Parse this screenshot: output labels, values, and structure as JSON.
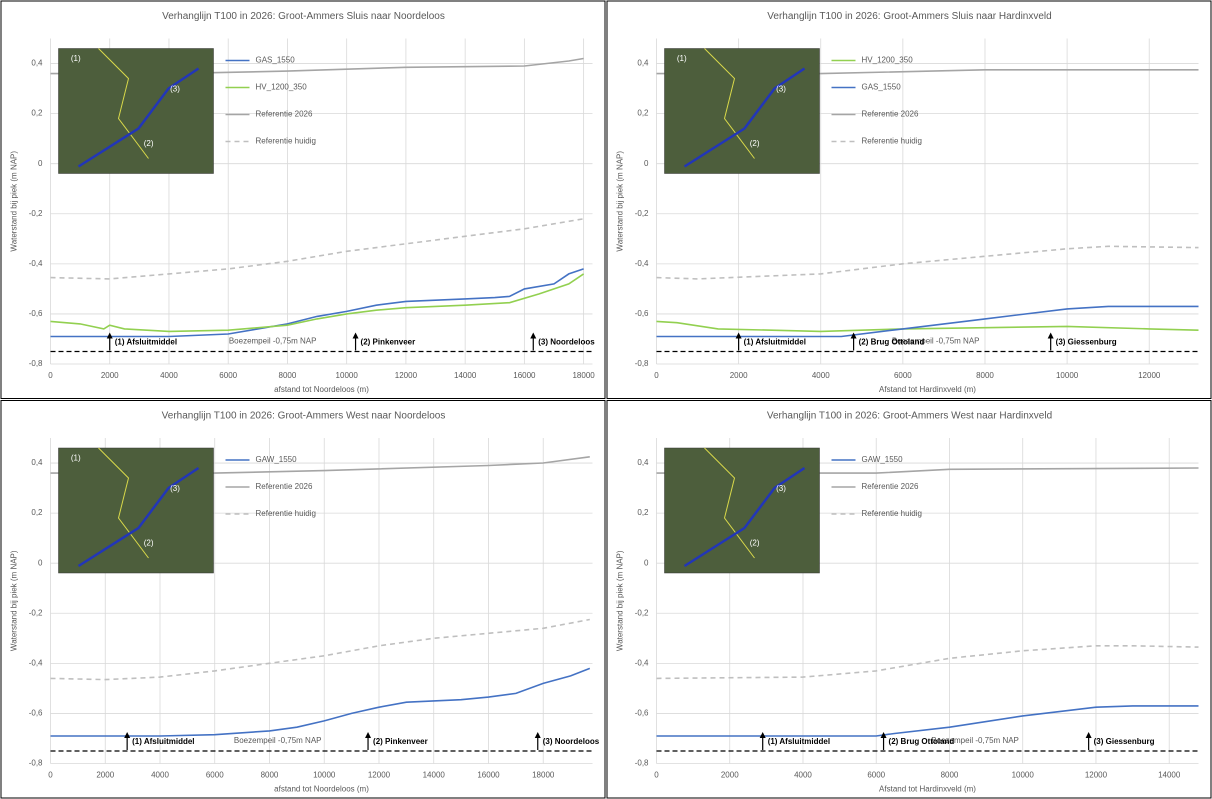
{
  "chart_data": [
    {
      "type": "line",
      "title": "Verhanglijn T100 in 2026: Groot-Ammers Sluis naar Noordeloos",
      "x_label": "afstand tot Noordeloos (m)",
      "y_label": "Waterstand bij piek (m NAP)",
      "xlim": [
        0,
        18300
      ],
      "xticks": [
        0,
        2000,
        4000,
        6000,
        8000,
        10000,
        12000,
        14000,
        16000,
        18000
      ],
      "ylim": [
        -0.8,
        0.5
      ],
      "yticks": [
        {
          "value": -0.8,
          "label": "-0,8"
        },
        {
          "value": -0.6,
          "label": "-0,6"
        },
        {
          "value": -0.4,
          "label": "-0,4"
        },
        {
          "value": -0.2,
          "label": "-0,2"
        },
        0,
        {
          "value": 0.2,
          "label": "0,2"
        },
        {
          "value": 0.4,
          "label": "0,4"
        }
      ],
      "grid": true,
      "legend": "upper-left",
      "series": [
        {
          "name": "GAS_1550",
          "color": "#4472c4",
          "dashed": false,
          "x": [
            0,
            2000,
            4000,
            6000,
            7000,
            8000,
            9000,
            10000,
            11000,
            12000,
            13000,
            14000,
            15000,
            15500,
            16000,
            17000,
            17500,
            18000
          ],
          "values": [
            -0.69,
            -0.69,
            -0.69,
            -0.68,
            -0.66,
            -0.64,
            -0.61,
            -0.59,
            -0.565,
            -0.55,
            -0.545,
            -0.54,
            -0.535,
            -0.53,
            -0.5,
            -0.48,
            -0.44,
            -0.42
          ]
        },
        {
          "name": "HV_1200_350",
          "color": "#92d050",
          "dashed": false,
          "x": [
            0,
            1000,
            1800,
            2000,
            2500,
            4000,
            6000,
            8000,
            9000,
            10000,
            11000,
            12000,
            14000,
            15500,
            16500,
            17500,
            18000
          ],
          "values": [
            -0.63,
            -0.64,
            -0.66,
            -0.645,
            -0.66,
            -0.67,
            -0.665,
            -0.645,
            -0.62,
            -0.6,
            -0.585,
            -0.575,
            -0.565,
            -0.555,
            -0.52,
            -0.48,
            -0.44
          ]
        },
        {
          "name": "Referentie 2026",
          "color": "#a5a5a5",
          "dashed": false,
          "x": [
            0,
            4000,
            8000,
            12000,
            16000,
            17500,
            18000
          ],
          "values": [
            0.36,
            0.36,
            0.37,
            0.385,
            0.39,
            0.41,
            0.42
          ]
        },
        {
          "name": "Referentie huidig",
          "color": "#bfbfbf",
          "dashed": true,
          "x": [
            0,
            2000,
            4000,
            6000,
            8000,
            10000,
            12000,
            14000,
            16000,
            18000
          ],
          "values": [
            -0.455,
            -0.46,
            -0.44,
            -0.42,
            -0.39,
            -0.35,
            -0.32,
            -0.29,
            -0.26,
            -0.22
          ]
        }
      ],
      "reference_line": -0.75,
      "reference_label": {
        "x": 7500,
        "text": "Boezempeil -0,75m NAP"
      },
      "annotations": [
        {
          "x": 2000,
          "text": "(1) Afsluitmiddel"
        },
        {
          "x": 10300,
          "text": "(2) Pinkenveer"
        },
        {
          "x": 16300,
          "text": "(3) Noordeloos"
        }
      ],
      "map_labels": [
        "(1)",
        "(2)",
        "(3)"
      ]
    },
    {
      "type": "line",
      "title": "Verhanglijn T100 in 2026: Groot-Ammers Sluis naar Hardinxveld",
      "x_label": "Afstand tot Hardinxveld (m)",
      "y_label": "Waterstand bij piek (m NAP)",
      "xlim": [
        0,
        13200
      ],
      "xticks": [
        0,
        2000,
        4000,
        6000,
        8000,
        10000,
        12000
      ],
      "ylim": [
        -0.8,
        0.5
      ],
      "yticks": [
        {
          "value": -0.8,
          "label": "-0,8"
        },
        {
          "value": -0.6,
          "label": "-0,6"
        },
        {
          "value": -0.4,
          "label": "-0,4"
        },
        {
          "value": -0.2,
          "label": "-0,2"
        },
        0,
        {
          "value": 0.2,
          "label": "0,2"
        },
        {
          "value": 0.4,
          "label": "0,4"
        }
      ],
      "grid": true,
      "legend": "upper-left",
      "series": [
        {
          "name": "HV_1200_350",
          "color": "#92d050",
          "dashed": false,
          "x": [
            0,
            500,
            1500,
            4000,
            6000,
            8000,
            10000,
            12000,
            13200
          ],
          "values": [
            -0.63,
            -0.635,
            -0.66,
            -0.67,
            -0.66,
            -0.655,
            -0.65,
            -0.66,
            -0.665
          ]
        },
        {
          "name": "GAS_1550",
          "color": "#4472c4",
          "dashed": false,
          "x": [
            0,
            4500,
            6000,
            8000,
            10000,
            11000,
            13200
          ],
          "values": [
            -0.69,
            -0.69,
            -0.66,
            -0.62,
            -0.58,
            -0.57,
            -0.57
          ]
        },
        {
          "name": "Referentie 2026",
          "color": "#a5a5a5",
          "dashed": false,
          "x": [
            0,
            4000,
            8000,
            13200
          ],
          "values": [
            0.36,
            0.36,
            0.375,
            0.375
          ]
        },
        {
          "name": "Referentie huidig",
          "color": "#bfbfbf",
          "dashed": true,
          "x": [
            0,
            1000,
            4000,
            6000,
            8000,
            10000,
            11000,
            13200
          ],
          "values": [
            -0.455,
            -0.46,
            -0.44,
            -0.4,
            -0.37,
            -0.34,
            -0.33,
            -0.335
          ]
        }
      ],
      "reference_line": -0.75,
      "reference_label": {
        "x": 6800,
        "text": "Boezempeil -0,75m NAP"
      },
      "annotations": [
        {
          "x": 2000,
          "text": "(1) Afsluitmiddel"
        },
        {
          "x": 4800,
          "text": "(2) Brug Ottoland"
        },
        {
          "x": 9600,
          "text": "(3) Giessenburg"
        }
      ],
      "map_labels": [
        "(1)",
        "(2)",
        "(3)"
      ]
    },
    {
      "type": "line",
      "title": "Verhanglijn T100 in 2026: Groot-Ammers West naar Noordeloos",
      "x_label": "afstand tot Noordeloos (m)",
      "y_label": "Waterstand bij piek (m NAP)",
      "xlim": [
        0,
        19800
      ],
      "xticks": [
        0,
        2000,
        4000,
        6000,
        8000,
        10000,
        12000,
        14000,
        16000,
        18000
      ],
      "ylim": [
        -0.8,
        0.5
      ],
      "yticks": [
        {
          "value": -0.8,
          "label": "-0,8"
        },
        {
          "value": -0.6,
          "label": "-0,6"
        },
        {
          "value": -0.4,
          "label": "-0,4"
        },
        {
          "value": -0.2,
          "label": "-0,2"
        },
        0,
        {
          "value": 0.2,
          "label": "0,2"
        },
        {
          "value": 0.4,
          "label": "0,4"
        }
      ],
      "grid": true,
      "legend": "upper-left",
      "series": [
        {
          "name": "GAW_1550",
          "color": "#4472c4",
          "dashed": false,
          "x": [
            0,
            4000,
            6000,
            8000,
            9000,
            10000,
            11000,
            12000,
            13000,
            14000,
            15000,
            16000,
            17000,
            18000,
            19000,
            19700
          ],
          "values": [
            -0.69,
            -0.69,
            -0.685,
            -0.67,
            -0.655,
            -0.63,
            -0.6,
            -0.575,
            -0.555,
            -0.55,
            -0.545,
            -0.535,
            -0.52,
            -0.48,
            -0.45,
            -0.42
          ]
        },
        {
          "name": "Referentie 2026",
          "color": "#a5a5a5",
          "dashed": false,
          "x": [
            0,
            6000,
            10000,
            16000,
            18000,
            19700
          ],
          "values": [
            0.36,
            0.36,
            0.37,
            0.39,
            0.4,
            0.425
          ]
        },
        {
          "name": "Referentie huidig",
          "color": "#bfbfbf",
          "dashed": true,
          "x": [
            0,
            2000,
            4000,
            6000,
            8000,
            10000,
            12000,
            14000,
            16000,
            18000,
            19700
          ],
          "values": [
            -0.46,
            -0.465,
            -0.455,
            -0.43,
            -0.4,
            -0.37,
            -0.33,
            -0.3,
            -0.28,
            -0.26,
            -0.225
          ]
        }
      ],
      "reference_line": -0.75,
      "reference_label": {
        "x": 8300,
        "text": "Boezempeil -0,75m NAP"
      },
      "annotations": [
        {
          "x": 2800,
          "text": "(1) Afsluitmiddel"
        },
        {
          "x": 11600,
          "text": "(2) Pinkenveer"
        },
        {
          "x": 17800,
          "text": "(3) Noordeloos"
        }
      ],
      "map_labels": [
        "(1)",
        "(2)",
        "(3)"
      ]
    },
    {
      "type": "line",
      "title": "Verhanglijn T100 in 2026: Groot-Ammers West naar Hardinxveld",
      "x_label": "Afstand tot Hardinxveld (m)",
      "y_label": "Waterstand bij piek (m NAP)",
      "xlim": [
        0,
        14800
      ],
      "xticks": [
        0,
        2000,
        4000,
        6000,
        8000,
        10000,
        12000,
        14000
      ],
      "ylim": [
        -0.8,
        0.5
      ],
      "yticks": [
        {
          "value": -0.8,
          "label": "-0,8"
        },
        {
          "value": -0.6,
          "label": "-0,6"
        },
        {
          "value": -0.4,
          "label": "-0,4"
        },
        {
          "value": -0.2,
          "label": "-0,2"
        },
        0,
        {
          "value": 0.2,
          "label": "0,2"
        },
        {
          "value": 0.4,
          "label": "0,4"
        }
      ],
      "grid": true,
      "legend": "upper-left",
      "series": [
        {
          "name": "GAW_1550",
          "color": "#4472c4",
          "dashed": false,
          "x": [
            0,
            6000,
            6500,
            8000,
            10000,
            12000,
            13000,
            14800
          ],
          "values": [
            -0.69,
            -0.69,
            -0.68,
            -0.655,
            -0.61,
            -0.575,
            -0.57,
            -0.57
          ]
        },
        {
          "name": "Referentie 2026",
          "color": "#a5a5a5",
          "dashed": false,
          "x": [
            0,
            6000,
            8000,
            14800
          ],
          "values": [
            0.36,
            0.36,
            0.375,
            0.38
          ]
        },
        {
          "name": "Referentie huidig",
          "color": "#bfbfbf",
          "dashed": true,
          "x": [
            0,
            4000,
            6000,
            8000,
            10000,
            12000,
            13000,
            14800
          ],
          "values": [
            -0.46,
            -0.455,
            -0.43,
            -0.38,
            -0.35,
            -0.33,
            -0.33,
            -0.335
          ]
        }
      ],
      "reference_line": -0.75,
      "reference_label": {
        "x": 8700,
        "text": "Boezempeil -0,75m NAP"
      },
      "annotations": [
        {
          "x": 2900,
          "text": "(1) Afsluitmiddel"
        },
        {
          "x": 6200,
          "text": "(2) Brug Ottoland"
        },
        {
          "x": 11800,
          "text": "(3) Giessenburg"
        }
      ],
      "map_labels": [
        "(2)",
        "(3)"
      ]
    }
  ]
}
